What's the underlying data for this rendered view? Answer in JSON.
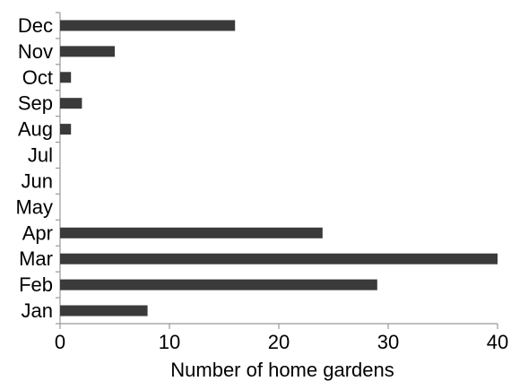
{
  "chart_data": {
    "type": "bar",
    "orientation": "horizontal",
    "categories": [
      "Jan",
      "Feb",
      "Mar",
      "Apr",
      "May",
      "Jun",
      "Jul",
      "Aug",
      "Sep",
      "Oct",
      "Nov",
      "Dec"
    ],
    "values": [
      8,
      29,
      40,
      24,
      0,
      0,
      0,
      1,
      2,
      1,
      5,
      16
    ],
    "xlabel": "Number of home gardens",
    "ylabel": "",
    "xlim": [
      0,
      40
    ],
    "xticks": [
      "0",
      "10",
      "20",
      "30",
      "40"
    ],
    "grid": false,
    "colors": {
      "bar": "#3a3a3a",
      "axis": "#999999",
      "text": "#000000"
    }
  }
}
